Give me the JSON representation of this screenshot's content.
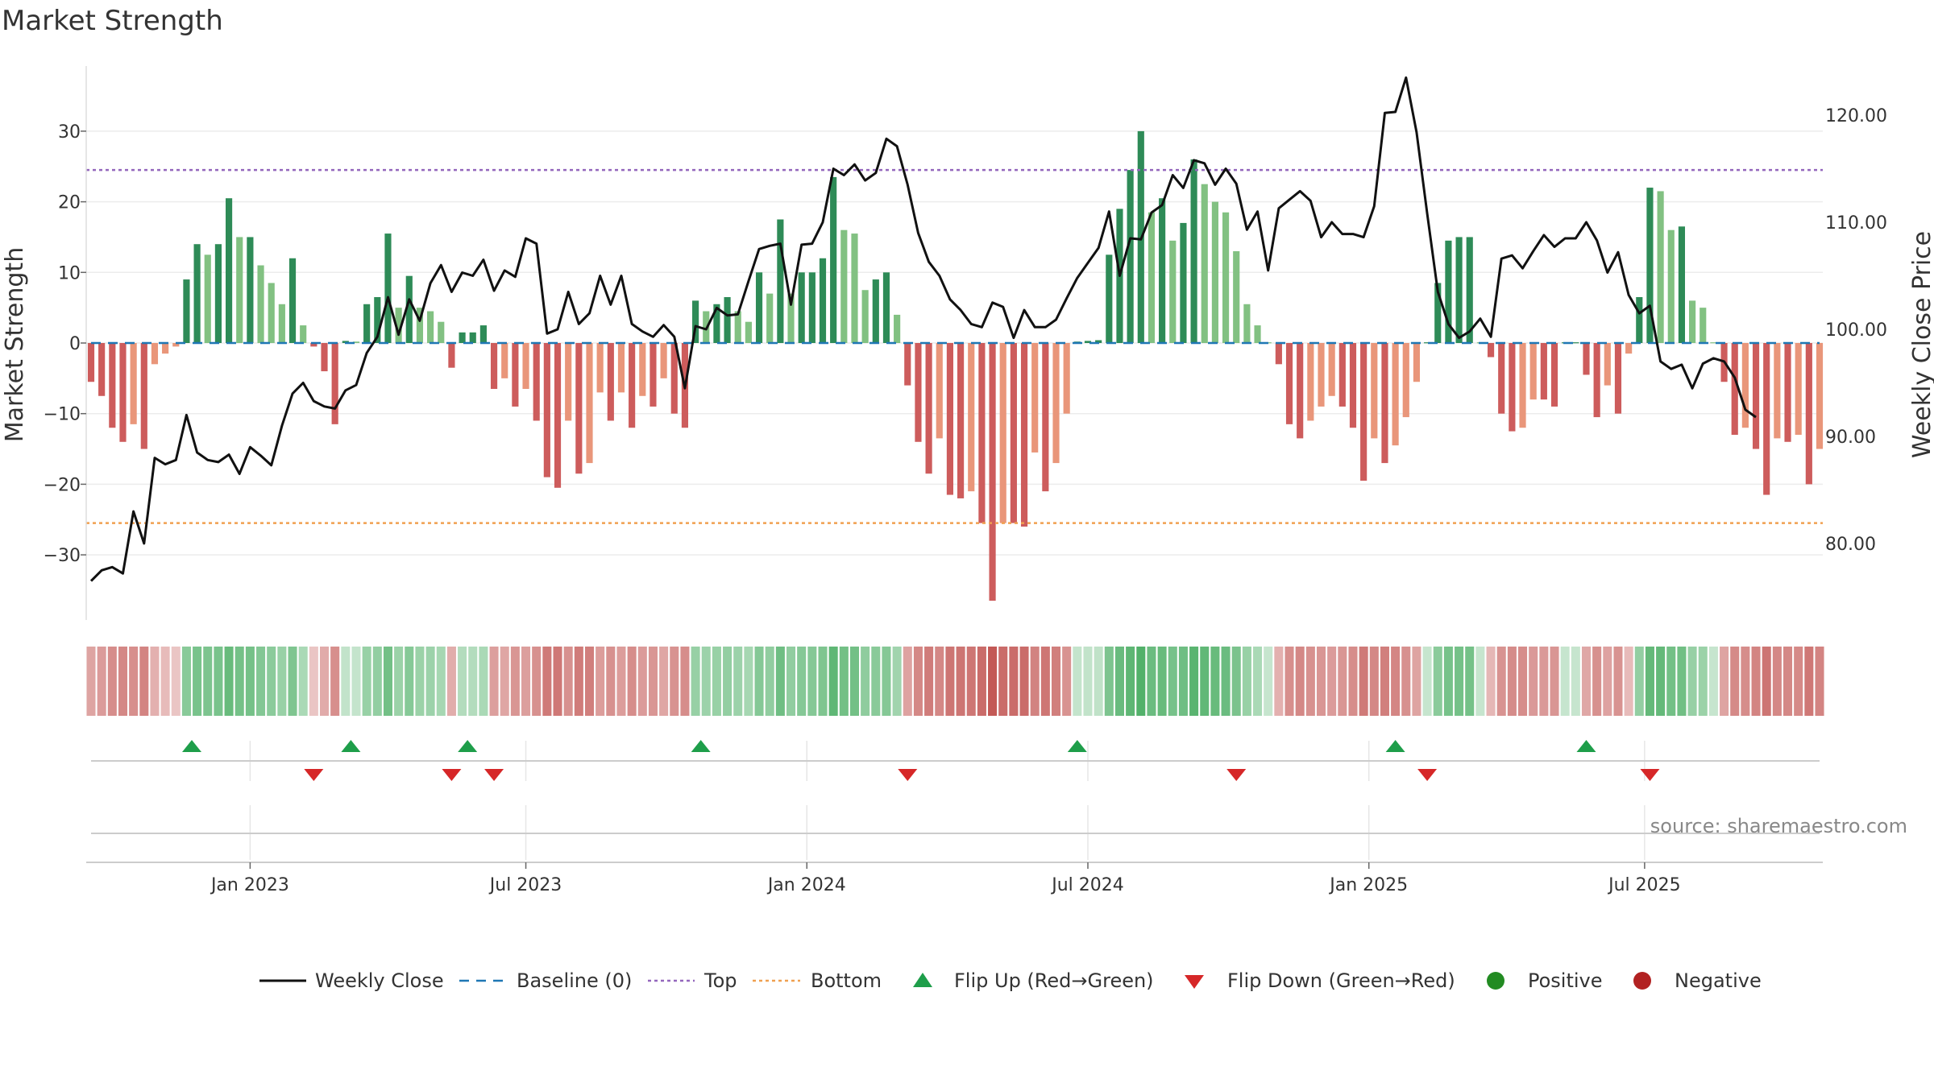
{
  "chart_data": {
    "type": "bar",
    "title": "Market Strength",
    "ylabel_left": "Market Strength",
    "ylabel_right": "Weekly Close Price",
    "ylim_left": [
      -40,
      40
    ],
    "ylim_right": [
      72,
      124
    ],
    "left_ticks": [
      30,
      20,
      10,
      0,
      -10,
      -20,
      -30
    ],
    "left_tick_labels": [
      "30",
      "20",
      "10",
      "0",
      "−10",
      "−20",
      "−30"
    ],
    "right_ticks": [
      120,
      110,
      100,
      90,
      80
    ],
    "right_tick_labels": [
      "120.00",
      "110.00",
      "100.00",
      "90.00",
      "80.00"
    ],
    "top_level": 24.5,
    "bottom_level": -25.5,
    "x_ticks": [
      {
        "label": "Jan 2023",
        "week": 15
      },
      {
        "label": "Jul 2023",
        "week": 41
      },
      {
        "label": "Jan 2024",
        "week": 67.5
      },
      {
        "label": "Jul 2024",
        "week": 94
      },
      {
        "label": "Jan 2025",
        "week": 120.5
      },
      {
        "label": "Jul 2025",
        "week": 146.5
      }
    ],
    "strength": [
      -5.5,
      -7.5,
      -12,
      -14,
      -11.5,
      -15,
      -3,
      -1.5,
      -0.5,
      9,
      14,
      12.5,
      14,
      20.5,
      15,
      15,
      11,
      8.5,
      5.5,
      12,
      2.5,
      -0.5,
      -4,
      -11.5,
      0.3,
      0.2,
      5.5,
      6.5,
      15.5,
      5,
      9.5,
      5,
      4.5,
      3,
      -3.5,
      1.5,
      1.5,
      2.5,
      -6.5,
      -5,
      -9,
      -6.5,
      -11,
      -19,
      -20.5,
      -11,
      -18.5,
      -17,
      -7,
      -11,
      -7,
      -12,
      -7.5,
      -9,
      -5,
      -10,
      -12,
      6,
      4.5,
      5.5,
      6.5,
      4.5,
      3,
      10,
      7,
      17.5,
      7,
      10,
      10,
      12,
      23.5,
      16,
      15.5,
      7.5,
      9,
      10,
      4,
      -6,
      -14,
      -18.5,
      -13.5,
      -21.5,
      -22,
      -21,
      -25.5,
      -36.5,
      -25.5,
      -25.5,
      -26,
      -15.5,
      -21,
      -17,
      -10,
      0.2,
      0.3,
      0.4,
      12.5,
      19,
      24.5,
      30,
      18.5,
      20.5,
      14.5,
      17,
      26,
      22.5,
      20,
      18.5,
      13,
      5.5,
      2.5,
      0.1,
      -3,
      -11.5,
      -13.5,
      -11,
      -9,
      -7.5,
      -9,
      -12,
      -19.5,
      -13.5,
      -17,
      -14.5,
      -10.5,
      -5.5,
      0.1,
      8.5,
      14.5,
      15,
      15,
      0.1,
      -2,
      -10,
      -12.5,
      -12,
      -8,
      -8,
      -9,
      0.1,
      0.1,
      -4.5,
      -10.5,
      -6,
      -10,
      -1.5,
      6.5,
      22,
      21.5,
      16,
      16.5,
      6,
      5,
      0.1,
      -5.5,
      -13,
      -12,
      -15,
      -21.5,
      -13.5,
      -14,
      -13,
      -20,
      -15
    ],
    "close": [
      76.5,
      77.5,
      77.8,
      77.2,
      83,
      80,
      88,
      87.4,
      87.8,
      92,
      88.5,
      87.8,
      87.6,
      88.3,
      86.5,
      89,
      88.2,
      87.3,
      91,
      94,
      95,
      93.3,
      92.8,
      92.6,
      94.3,
      94.8,
      97.8,
      99.3,
      103,
      99.5,
      102.8,
      100.8,
      104.3,
      106,
      103.5,
      105.3,
      105,
      106.5,
      103.6,
      105.5,
      104.9,
      108.5,
      108,
      99.6,
      100,
      103.5,
      100.5,
      101.5,
      105,
      102.3,
      105,
      100.5,
      99.8,
      99.3,
      100.4,
      99.3,
      94.5,
      100.3,
      100,
      102,
      101.3,
      101.4,
      104.5,
      107.5,
      107.8,
      108,
      102.3,
      107.9,
      108,
      110,
      115,
      114.4,
      115.4,
      113.9,
      114.6,
      117.8,
      117.1,
      113.5,
      109,
      106.3,
      105,
      102.8,
      101.8,
      100.5,
      100.2,
      102.5,
      102.1,
      99.2,
      101.8,
      100.2,
      100.2,
      100.9,
      102.9,
      104.8,
      106.2,
      107.6,
      111,
      105,
      108.5,
      108.4,
      110.9,
      111.6,
      114.4,
      113.2,
      115.8,
      115.5,
      113.5,
      115,
      113.6,
      109.3,
      111,
      105.5,
      111.3,
      112.1,
      112.9,
      112,
      108.6,
      110,
      108.9,
      108.9,
      108.6,
      111.5,
      120.2,
      120.3,
      123.5,
      118.4,
      110.8,
      103.5,
      100.5,
      99.2,
      99.8,
      101,
      99.3,
      106.6,
      106.9,
      105.7,
      107.3,
      108.8,
      107.7,
      108.5,
      108.5,
      110,
      108.3,
      105.3,
      107.2,
      103.2,
      101.5,
      102.2,
      97,
      96.3,
      96.7,
      94.5,
      96.8,
      97.3,
      97,
      95.5,
      92.5,
      91.8
    ],
    "flip_up_weeks": [
      9.5,
      24.5,
      35.5,
      57.5,
      93,
      123,
      141
    ],
    "flip_down_weeks": [
      21,
      34,
      38,
      77,
      108,
      126,
      147
    ],
    "legend": [
      "Weekly Close",
      "Baseline (0)",
      "Top",
      "Bottom",
      "Flip Up (Red→Green)",
      "Flip Down (Green→Red)",
      "Positive",
      "Negative"
    ],
    "colors": {
      "pos_strong": "#2e8b57",
      "pos_light": "#82c182",
      "neg_strong": "#cd5c5c",
      "neg_light": "#e9967a",
      "close_line": "#111111",
      "baseline": "#1f77b4",
      "top": "#9467bd",
      "bottom": "#f0a050",
      "flip_up": "#1e9e4a",
      "flip_down": "#d62728",
      "positive": "#228b22",
      "negative": "#b22222"
    }
  },
  "source": "source: sharemaestro.com"
}
